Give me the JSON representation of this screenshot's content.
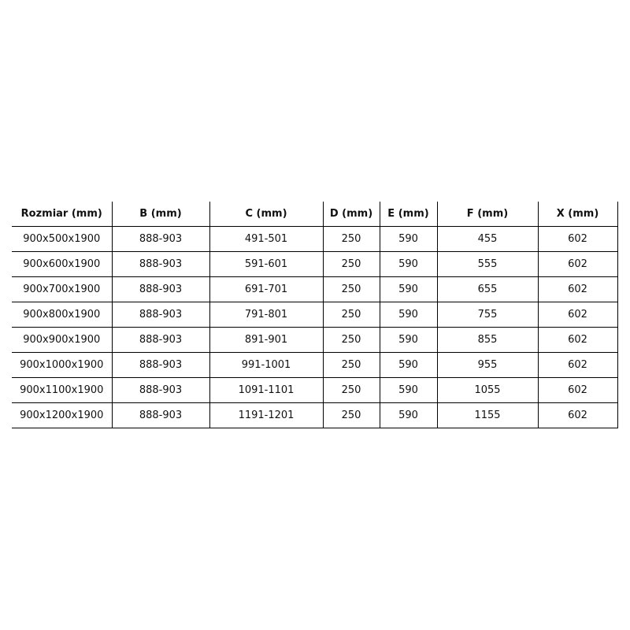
{
  "headers": [
    "Rozmiar (mm)",
    "B (mm)",
    "C (mm)",
    "D (mm)",
    "E (mm)",
    "F (mm)",
    "X (mm)"
  ],
  "rows": [
    [
      "900x500x1900",
      "888-903",
      "491-501",
      "250",
      "590",
      "455",
      "602"
    ],
    [
      "900x600x1900",
      "888-903",
      "591-601",
      "250",
      "590",
      "555",
      "602"
    ],
    [
      "900x700x1900",
      "888-903",
      "691-701",
      "250",
      "590",
      "655",
      "602"
    ],
    [
      "900x800x1900",
      "888-903",
      "791-801",
      "250",
      "590",
      "755",
      "602"
    ],
    [
      "900x900x1900",
      "888-903",
      "891-901",
      "250",
      "590",
      "855",
      "602"
    ],
    [
      "900x1000x1900",
      "888-903",
      "991-1001",
      "250",
      "590",
      "955",
      "602"
    ],
    [
      "900x1100x1900",
      "888-903",
      "1091-1101",
      "250",
      "590",
      "1055",
      "602"
    ],
    [
      "900x1200x1900",
      "888-903",
      "1191-1201",
      "250",
      "590",
      "1155",
      "602"
    ]
  ]
}
